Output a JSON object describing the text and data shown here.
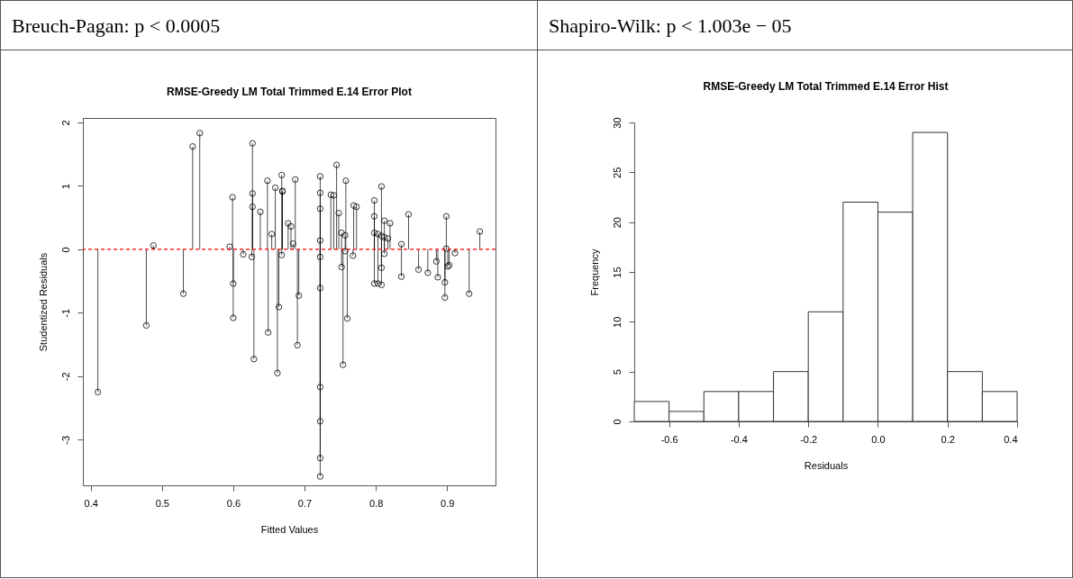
{
  "chart_data": [
    {
      "type": "lollipop",
      "title": "RMSE-Greedy LM Total Trimmed E.14 Error Plot",
      "xlabel": "Fitted Values",
      "ylabel": "Studentized Residuals",
      "annotations": [
        "Breuch-Pagan: p < 0.0005"
      ],
      "xlim": [
        0.389,
        0.968
      ],
      "ylim": [
        -3.72,
        2.07
      ],
      "xticks": [
        0.4,
        0.5,
        0.6,
        0.7,
        0.8,
        0.9
      ],
      "yticks": [
        -3,
        -2,
        -1,
        0,
        1,
        2
      ],
      "marker": "circle",
      "ref_lines": [
        {
          "axis": "y",
          "value": 0,
          "color": "#ff0000",
          "line_style": "dashed"
        }
      ],
      "x": [
        0.41,
        0.478,
        0.488,
        0.53,
        0.543,
        0.553,
        0.595,
        0.599,
        0.6,
        0.6,
        0.614,
        0.626,
        0.627,
        0.627,
        0.627,
        0.629,
        0.638,
        0.648,
        0.649,
        0.654,
        0.659,
        0.662,
        0.664,
        0.668,
        0.669,
        0.669,
        0.668,
        0.677,
        0.681,
        0.684,
        0.687,
        0.69,
        0.692,
        0.722,
        0.722,
        0.722,
        0.722,
        0.722,
        0.722,
        0.722,
        0.722,
        0.722,
        0.722,
        0.737,
        0.741,
        0.745,
        0.748,
        0.752,
        0.752,
        0.757,
        0.757,
        0.758,
        0.76,
        0.754,
        0.769,
        0.773,
        0.768,
        0.798,
        0.798,
        0.798,
        0.798,
        0.803,
        0.803,
        0.808,
        0.808,
        0.808,
        0.808,
        0.812,
        0.812,
        0.812,
        0.817,
        0.82,
        0.836,
        0.836,
        0.846,
        0.86,
        0.873,
        0.885,
        0.887,
        0.897,
        0.897,
        0.899,
        0.899,
        0.901,
        0.903,
        0.911,
        0.931,
        0.946
      ],
      "series": [
        {
          "color": "#000000",
          "values": [
            -2.25,
            -1.2,
            0.06,
            -0.7,
            1.62,
            1.83,
            0.04,
            0.82,
            -0.54,
            -1.08,
            -0.08,
            -0.12,
            1.67,
            0.88,
            0.67,
            -1.73,
            0.59,
            1.08,
            -1.31,
            0.24,
            0.97,
            -1.95,
            -0.91,
            1.17,
            0.92,
            0.91,
            -0.09,
            0.41,
            0.36,
            0.09,
            1.1,
            -1.51,
            -0.73,
            1.15,
            0.89,
            0.64,
            0.14,
            -0.12,
            -0.61,
            -2.17,
            -2.71,
            -3.29,
            -3.58,
            0.86,
            0.85,
            1.33,
            0.57,
            0.26,
            -0.28,
            0.22,
            -0.03,
            1.08,
            -1.09,
            -1.82,
            0.69,
            0.67,
            -0.1,
            0.77,
            0.52,
            0.26,
            -0.54,
            0.24,
            -0.54,
            0.99,
            0.21,
            -0.29,
            -0.56,
            0.45,
            0.19,
            -0.07,
            0.17,
            0.41,
            0.08,
            -0.43,
            0.55,
            -0.32,
            -0.37,
            -0.19,
            -0.44,
            -0.76,
            -0.52,
            0.52,
            0.01,
            -0.27,
            -0.25,
            -0.06,
            -0.7,
            0.28
          ]
        }
      ]
    },
    {
      "type": "histogram",
      "title": "RMSE-Greedy LM Total Trimmed E.14 Error Hist",
      "xlabel": "Residuals",
      "ylabel": "Frequency",
      "annotations": [
        "Shapiro-Wilk: p < 1.003e − 05"
      ],
      "xlim": [
        -0.7,
        0.4
      ],
      "ylim": [
        0,
        30
      ],
      "xticks": [
        {
          "value": -0.6,
          "label": "-0.6"
        },
        {
          "value": -0.4,
          "label": "-0.4"
        },
        {
          "value": -0.2,
          "label": "-0.2"
        },
        {
          "value": 0,
          "label": "0.0"
        },
        {
          "value": 0.2,
          "label": "0.2"
        },
        {
          "value": 0.4,
          "label": "0.4"
        }
      ],
      "yticks": [
        0,
        5,
        10,
        15,
        20,
        25,
        30
      ],
      "bins": [
        -0.7,
        -0.6,
        -0.5,
        -0.4,
        -0.3,
        -0.2,
        -0.1,
        0,
        0.1,
        0.2,
        0.3,
        0.4
      ],
      "values": [
        2,
        1,
        3,
        3,
        5,
        11,
        22,
        21,
        29,
        5,
        3
      ],
      "color": "#ffffff"
    }
  ]
}
